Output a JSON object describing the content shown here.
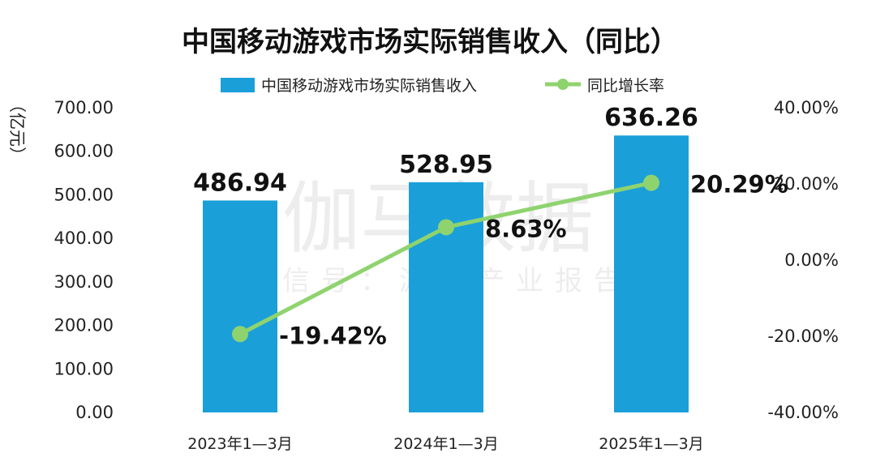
{
  "chart_data": {
    "type": "bar",
    "title": "中国移动游戏市场实际销售收入（同比）",
    "categories": [
      "2023年1—3月",
      "2024年1—3月",
      "2025年1—3月"
    ],
    "series": [
      {
        "name": "中国移动游戏市场实际销售收入",
        "type": "bar",
        "axis": "left",
        "values": [
          486.94,
          528.95,
          636.26
        ],
        "labels": [
          "486.94",
          "528.95",
          "636.26"
        ]
      },
      {
        "name": "同比增长率",
        "type": "line",
        "axis": "right",
        "values": [
          -19.42,
          8.63,
          20.29
        ],
        "labels": [
          "-19.42%",
          "8.63%",
          "20.29%"
        ]
      }
    ],
    "ylabel": "（亿元）",
    "ylim": [
      0,
      700
    ],
    "y_ticks": [
      "0.00",
      "100.00",
      "200.00",
      "300.00",
      "400.00",
      "500.00",
      "600.00",
      "700.00"
    ],
    "y2lim": [
      -40,
      40
    ],
    "y2_ticks": [
      "-40.00%",
      "-20.00%",
      "0.00%",
      "20.00%",
      "40.00%"
    ],
    "grid": false,
    "legend_position": "top-center",
    "colors": {
      "bar": "#1a9fd9",
      "line": "#8fd36f"
    }
  },
  "watermark": {
    "main": "伽马数据",
    "sub": "微信号：游戏产业报告"
  }
}
